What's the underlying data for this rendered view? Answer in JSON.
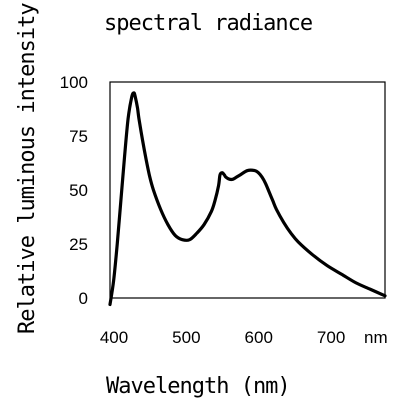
{
  "chart_data": {
    "type": "line",
    "title": "spectral radiance",
    "xlabel": "Wavelength (nm)",
    "ylabel": "Relative luminous intensity(%)",
    "x_unit_label": "nm",
    "xlim": [
      400,
      780
    ],
    "ylim": [
      0,
      100
    ],
    "x_ticks": [
      400,
      500,
      600,
      700
    ],
    "y_ticks": [
      0,
      25,
      50,
      75,
      100
    ],
    "grid": false,
    "series": [
      {
        "color": "#000000",
        "x": [
          400,
          405,
          410,
          415,
          420,
          425,
          430,
          433,
          435,
          438,
          440,
          445,
          450,
          455,
          460,
          470,
          480,
          490,
          500,
          510,
          520,
          530,
          540,
          545,
          550,
          552,
          555,
          558,
          560,
          565,
          570,
          575,
          580,
          590,
          600,
          605,
          610,
          615,
          620,
          625,
          630,
          640,
          650,
          660,
          680,
          700,
          720,
          740,
          760,
          780
        ],
        "y": [
          -3,
          8,
          25,
          45,
          65,
          83,
          93,
          95,
          93,
          88,
          83,
          73,
          64,
          56,
          50,
          41,
          34,
          29,
          27,
          27,
          30,
          34,
          40,
          45,
          52,
          57,
          58,
          57,
          56,
          55,
          55,
          56,
          57,
          59,
          59,
          58,
          56,
          53,
          49,
          45,
          41,
          35,
          30,
          26,
          20,
          15,
          11,
          7,
          4,
          1
        ]
      }
    ]
  }
}
